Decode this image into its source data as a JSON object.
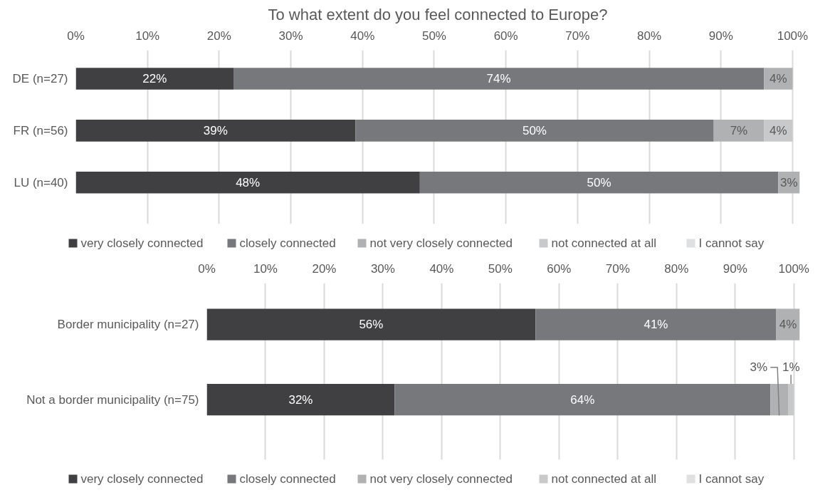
{
  "chart_data": [
    {
      "type": "bar",
      "orientation": "horizontal",
      "stacked": true,
      "title": "To what extent do you feel connected to Europe?",
      "categories": [
        "DE (n=27)",
        "FR (n=56)",
        "LU (n=40)"
      ],
      "series": [
        {
          "name": "very closely connected",
          "color": "#404042",
          "values": [
            22,
            39,
            48
          ],
          "value_labels": [
            "22%",
            "39%",
            "48%"
          ]
        },
        {
          "name": "closely connected",
          "color": "#77787b",
          "values": [
            74,
            50,
            50
          ],
          "value_labels": [
            "74%",
            "50%",
            "50%"
          ]
        },
        {
          "name": "not very closely connected",
          "color": "#b0b1b3",
          "values": [
            4,
            7,
            3
          ],
          "value_labels": [
            "4%",
            "7%",
            "3%"
          ]
        },
        {
          "name": "not connected at all",
          "color": "#c8c9cb",
          "values": [
            null,
            4,
            null
          ],
          "value_labels": [
            null,
            "4%",
            null
          ]
        },
        {
          "name": "I cannot say",
          "color": "#dfe0e1",
          "values": [
            null,
            null,
            null
          ],
          "value_labels": [
            null,
            null,
            null
          ]
        }
      ],
      "xlim": [
        0,
        101
      ],
      "xticks": [
        {
          "value": 0,
          "label": "0%"
        },
        {
          "value": 10,
          "label": "10%"
        },
        {
          "value": 20,
          "label": "20%"
        },
        {
          "value": 30,
          "label": "30%"
        },
        {
          "value": 40,
          "label": "40%"
        },
        {
          "value": 50,
          "label": "50%"
        },
        {
          "value": 60,
          "label": "60%"
        },
        {
          "value": 70,
          "label": "70%"
        },
        {
          "value": 80,
          "label": "80%"
        },
        {
          "value": 90,
          "label": "90%"
        },
        {
          "value": 100,
          "label": "100%"
        }
      ],
      "grid": "x",
      "legend": "bottom"
    },
    {
      "type": "bar",
      "orientation": "horizontal",
      "stacked": true,
      "categories": [
        "Border municipality (n=27)",
        "Not a border municipality (n=75)"
      ],
      "series": [
        {
          "name": "very closely connected",
          "color": "#404042",
          "values": [
            56,
            32
          ],
          "value_labels": [
            "56%",
            "32%"
          ]
        },
        {
          "name": "closely connected",
          "color": "#77787b",
          "values": [
            41,
            64
          ],
          "value_labels": [
            "41%",
            "64%"
          ]
        },
        {
          "name": "not very closely connected",
          "color": "#b0b1b3",
          "values": [
            4,
            3
          ],
          "value_labels": [
            "4%",
            "3%"
          ]
        },
        {
          "name": "not connected at all",
          "color": "#c8c9cb",
          "values": [
            null,
            1
          ],
          "value_labels": [
            null,
            "1%"
          ]
        },
        {
          "name": "I cannot say",
          "color": "#dfe0e1",
          "values": [
            null,
            null
          ],
          "value_labels": [
            null,
            null
          ]
        }
      ],
      "xlim": [
        0,
        101
      ],
      "xticks": [
        {
          "value": 0,
          "label": "0%"
        },
        {
          "value": 10,
          "label": "10%"
        },
        {
          "value": 20,
          "label": "20%"
        },
        {
          "value": 30,
          "label": "30%"
        },
        {
          "value": 40,
          "label": "40%"
        },
        {
          "value": 50,
          "label": "50%"
        },
        {
          "value": 60,
          "label": "60%"
        },
        {
          "value": 70,
          "label": "70%"
        },
        {
          "value": 80,
          "label": "80%"
        },
        {
          "value": 90,
          "label": "90%"
        },
        {
          "value": 100,
          "label": "100%"
        }
      ],
      "grid": "x",
      "legend": "bottom"
    }
  ]
}
